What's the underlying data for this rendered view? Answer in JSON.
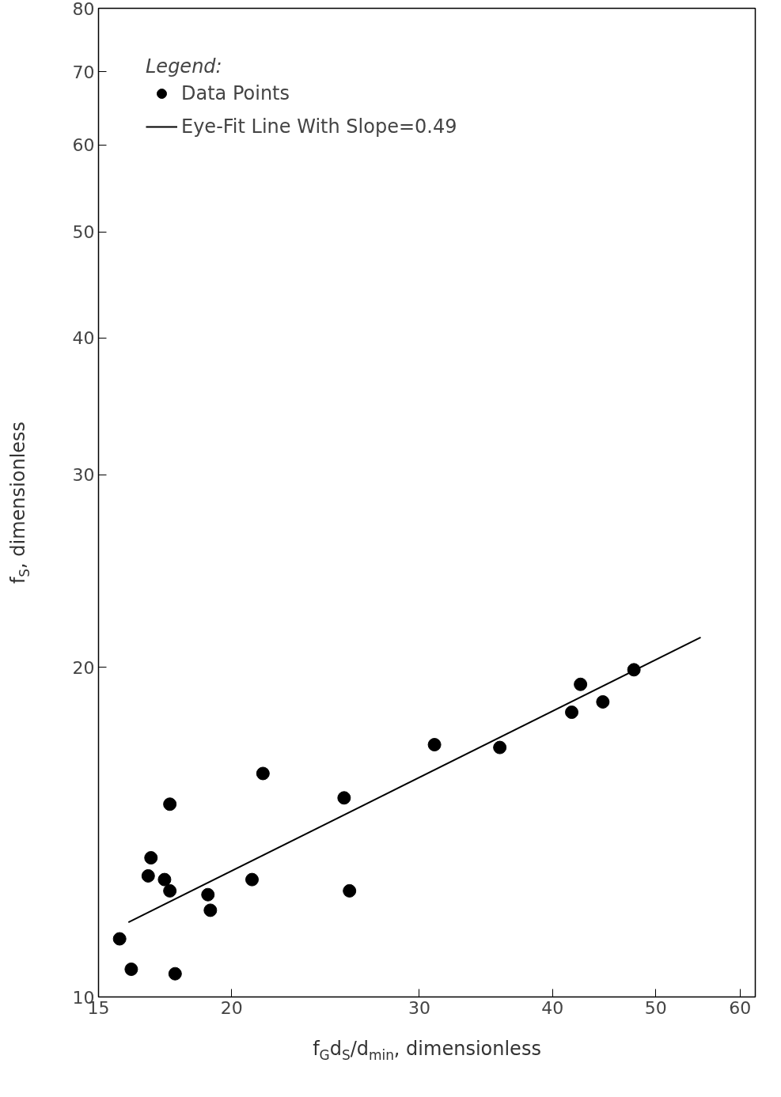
{
  "chart_data": {
    "type": "scatter",
    "xlabel": "f$_{G}$d$_{S}$/d$_{min}$, dimensionless",
    "ylabel": "f$_{S}$, dimensionless",
    "legend_title": "Legend:",
    "log": "xy",
    "grid": false,
    "legend": "top left",
    "marker": "circle",
    "xlim": [
      15,
      62
    ],
    "xticks": [
      15,
      20,
      30,
      40,
      50,
      60
    ],
    "ylim": [
      10,
      80
    ],
    "yticks": [
      10,
      20,
      30,
      40,
      50,
      60,
      70,
      80
    ],
    "series": [
      {
        "name": "Data Points",
        "color": "#000000",
        "x": [
          15.7,
          16.1,
          17.7,
          16.7,
          16.8,
          17.3,
          17.5,
          17.5,
          19.0,
          19.1,
          20.9,
          21.4,
          25.5,
          25.8,
          31.0,
          35.7,
          41.7,
          42.5,
          44.6,
          47.7
        ],
        "values": [
          11.3,
          10.6,
          10.5,
          12.9,
          13.4,
          12.8,
          15.0,
          12.5,
          12.4,
          12.0,
          12.8,
          16.0,
          15.2,
          12.5,
          17.0,
          16.9,
          18.2,
          19.3,
          18.6,
          19.9
        ]
      },
      {
        "name": "Eye-Fit Line With Slope=0.49",
        "type": "line",
        "marker": "none",
        "line_style": "solid",
        "color": "#000000",
        "x": [
          16.0,
          55.1
        ],
        "values": [
          11.7,
          21.3
        ]
      }
    ]
  }
}
